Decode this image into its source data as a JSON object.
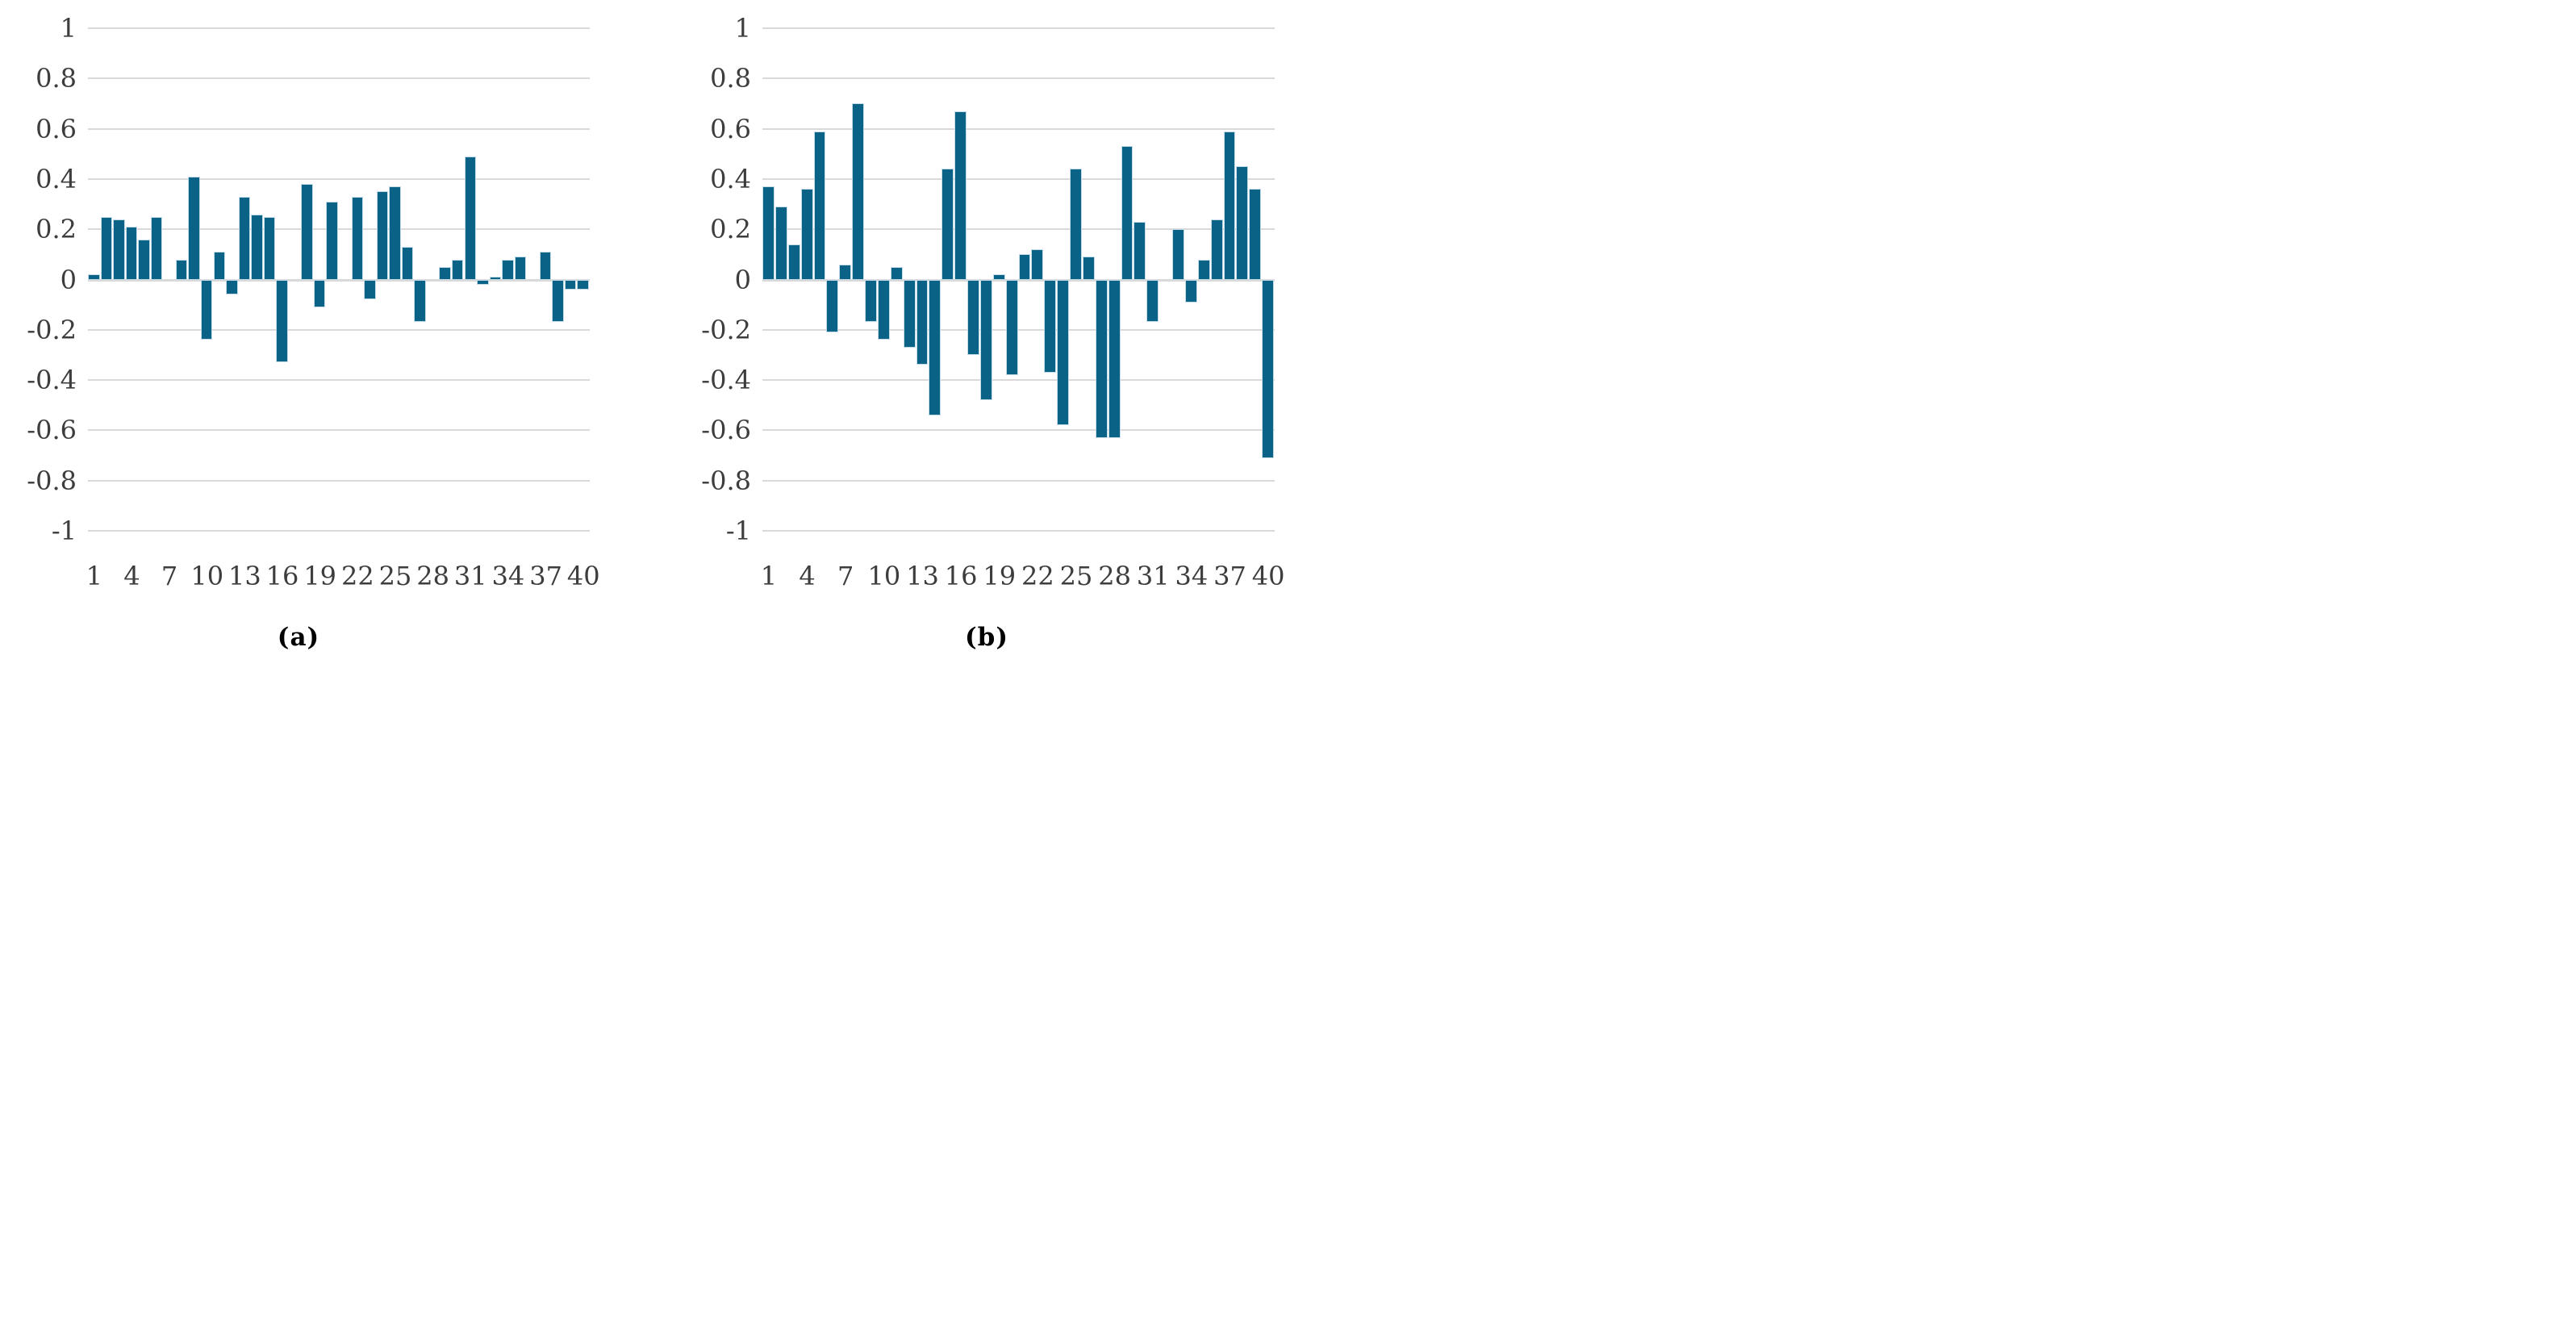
{
  "figure_type": "two-panel bar chart figure from a paper",
  "colors": {
    "background": "#ffffff",
    "bar_fill": "#0a6386",
    "bar_border": "#c3dce7",
    "gridline": "#d9d9d9",
    "axis_text": "#3d3d3d",
    "caption_text": "#000000"
  },
  "axes": {
    "ylim": [
      -1,
      1
    ],
    "y_tick_values": [
      1,
      0.8,
      0.6,
      0.4,
      0.2,
      0,
      -0.2,
      -0.4,
      -0.6,
      -0.8,
      -1
    ],
    "y_tick_labels": [
      "1",
      "0.8",
      "0.6",
      "0.4",
      "0.2",
      "0",
      "-0.2",
      "-0.4",
      "-0.6",
      "-0.8",
      "-1"
    ],
    "x_tick_positions": [
      1,
      4,
      7,
      10,
      13,
      16,
      19,
      22,
      25,
      28,
      31,
      34,
      37,
      40
    ],
    "x_tick_labels": [
      "1",
      "4",
      "7",
      "10",
      "13",
      "16",
      "19",
      "22",
      "25",
      "28",
      "31",
      "34",
      "37",
      "40"
    ],
    "grid": true,
    "legend": "none"
  },
  "chart_data": [
    {
      "id": "a",
      "type": "bar",
      "caption": "(a)",
      "x": [
        1,
        2,
        3,
        4,
        5,
        6,
        7,
        8,
        9,
        10,
        11,
        12,
        13,
        14,
        15,
        16,
        17,
        18,
        19,
        20,
        21,
        22,
        23,
        24,
        25,
        26,
        27,
        28,
        29,
        30,
        31,
        32,
        33,
        34,
        35,
        36,
        37,
        38,
        39,
        40
      ],
      "values": [
        0.02,
        0.25,
        0.24,
        0.21,
        0.16,
        0.25,
        0,
        0.08,
        0.41,
        -0.24,
        0.11,
        -0.06,
        0.33,
        0.26,
        0.25,
        -0.33,
        0,
        0.38,
        -0.11,
        0.31,
        0,
        0.33,
        -0.08,
        0.35,
        0.37,
        0.13,
        -0.17,
        0,
        0.05,
        0.08,
        0.49,
        -0.02,
        0.01,
        0.08,
        0.09,
        0,
        0.11,
        -0.17,
        -0.04,
        -0.04
      ],
      "ylim": [
        -1,
        1
      ]
    },
    {
      "id": "b",
      "type": "bar",
      "caption": "(b)",
      "x": [
        1,
        2,
        3,
        4,
        5,
        6,
        7,
        8,
        9,
        10,
        11,
        12,
        13,
        14,
        15,
        16,
        17,
        18,
        19,
        20,
        21,
        22,
        23,
        24,
        25,
        26,
        27,
        28,
        29,
        30,
        31,
        32,
        33,
        34,
        35,
        36,
        37,
        38,
        39,
        40
      ],
      "values": [
        0.37,
        0.29,
        0.14,
        0.36,
        0.59,
        -0.21,
        0.06,
        0.7,
        -0.17,
        -0.24,
        0.05,
        -0.27,
        -0.34,
        -0.54,
        0.44,
        0.67,
        -0.3,
        -0.48,
        0.02,
        -0.38,
        0.1,
        0.12,
        -0.37,
        -0.58,
        0.44,
        0.09,
        -0.63,
        -0.63,
        0.53,
        0.23,
        -0.17,
        0,
        0.2,
        -0.09,
        0.08,
        0.24,
        0.59,
        0.45,
        0.36,
        -0.71
      ],
      "ylim": [
        -1,
        1
      ]
    }
  ]
}
